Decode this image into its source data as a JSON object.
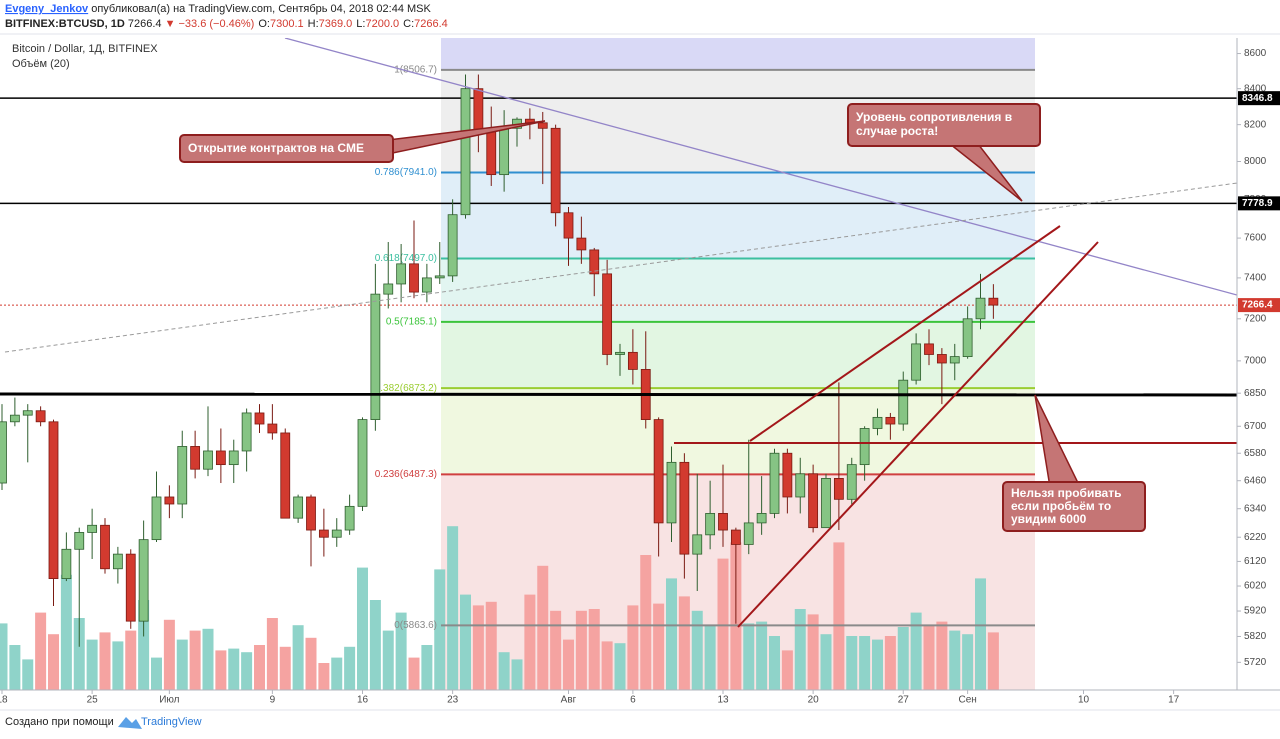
{
  "header": {
    "author": "Evgeny_Jenkov",
    "published": "опубликовал(а) на TradingView.com, Сентябрь 04, 2018 02:44 MSK",
    "symbol": "BITFINEX:BTCUSD, 1D",
    "last": "7266.4",
    "change": "▼ −33.6 (−0.46%)",
    "ohlc": [
      {
        "label": "O:",
        "value": "7300.1"
      },
      {
        "label": "H:",
        "value": "7369.0"
      },
      {
        "label": "L:",
        "value": "7200.0"
      },
      {
        "label": "C:",
        "value": "7266.4"
      }
    ]
  },
  "chart_data": {
    "type": "candlestick",
    "title": "Bitcoin / Dollar, 1Д, BITFINEX",
    "subtitle": "Объём (20)",
    "x": [
      "06-18",
      "06-19",
      "06-20",
      "06-21",
      "06-22",
      "06-23",
      "06-24",
      "06-25",
      "06-26",
      "06-27",
      "06-28",
      "06-29",
      "06-30",
      "07-01",
      "07-02",
      "07-03",
      "07-04",
      "07-05",
      "07-06",
      "07-07",
      "07-08",
      "07-09",
      "07-10",
      "07-11",
      "07-12",
      "07-13",
      "07-14",
      "07-15",
      "07-16",
      "07-17",
      "07-18",
      "07-19",
      "07-20",
      "07-21",
      "07-22",
      "07-23",
      "07-24",
      "07-25",
      "07-26",
      "07-27",
      "07-28",
      "07-29",
      "07-30",
      "07-31",
      "08-01",
      "08-02",
      "08-03",
      "08-04",
      "08-05",
      "08-06",
      "08-07",
      "08-08",
      "08-09",
      "08-10",
      "08-11",
      "08-12",
      "08-13",
      "08-14",
      "08-15",
      "08-16",
      "08-17",
      "08-18",
      "08-19",
      "08-20",
      "08-21",
      "08-22",
      "08-23",
      "08-24",
      "08-25",
      "08-26",
      "08-27",
      "08-28",
      "08-29",
      "08-30",
      "08-31",
      "09-01",
      "09-02",
      "09-03"
    ],
    "open": [
      6450,
      6720,
      6750,
      6770,
      6720,
      6050,
      6170,
      6240,
      6270,
      6090,
      6150,
      5880,
      6210,
      6390,
      6360,
      6610,
      6510,
      6590,
      6530,
      6590,
      6760,
      6710,
      6670,
      6300,
      6390,
      6250,
      6220,
      6250,
      6350,
      6730,
      7320,
      7370,
      7470,
      7330,
      7400,
      7410,
      7720,
      8400,
      8170,
      7930,
      8180,
      8230,
      8210,
      8180,
      7730,
      7600,
      7540,
      7420,
      7030,
      7040,
      6960,
      6730,
      6280,
      6540,
      6150,
      6230,
      6320,
      6250,
      6190,
      6280,
      6320,
      6580,
      6390,
      6490,
      6260,
      6470,
      6380,
      6530,
      6690,
      6740,
      6710,
      6910,
      7080,
      7030,
      6990,
      7020,
      7200,
      7300.1
    ],
    "high": [
      6800,
      6830,
      6800,
      6790,
      6730,
      6240,
      6260,
      6340,
      6300,
      6180,
      6170,
      6290,
      6500,
      6440,
      6680,
      6680,
      6790,
      6690,
      6640,
      6780,
      6800,
      6800,
      6690,
      6400,
      6400,
      6340,
      6300,
      6400,
      6740,
      7470,
      7580,
      7570,
      7690,
      7470,
      7580,
      7800,
      8480,
      8480,
      8300,
      8280,
      8240,
      8290,
      8270,
      8200,
      7760,
      7710,
      7550,
      7490,
      7080,
      7150,
      7140,
      6740,
      6610,
      6580,
      6490,
      6460,
      6530,
      6260,
      6640,
      6480,
      6600,
      6600,
      6560,
      6530,
      6490,
      6900,
      6560,
      6700,
      6780,
      6760,
      6950,
      7130,
      7150,
      7060,
      7080,
      7260,
      7420,
      7369
    ],
    "low": [
      6420,
      6700,
      6540,
      6700,
      5940,
      6040,
      5780,
      6130,
      6070,
      6030,
      5850,
      5820,
      6200,
      6300,
      6300,
      6470,
      6480,
      6450,
      6450,
      6500,
      6670,
      6640,
      6300,
      6280,
      6100,
      6140,
      6180,
      6230,
      6330,
      6680,
      7250,
      7280,
      7300,
      7280,
      7370,
      7380,
      7700,
      8050,
      7870,
      7840,
      8080,
      8120,
      7880,
      7660,
      7460,
      7470,
      7310,
      6980,
      6930,
      6890,
      6690,
      6140,
      6200,
      6050,
      6000,
      6170,
      6180,
      5870,
      6150,
      6230,
      6300,
      6320,
      6320,
      6240,
      6260,
      6250,
      6360,
      6460,
      6660,
      6640,
      6680,
      6890,
      6980,
      6800,
      6910,
      7010,
      7150,
      7200
    ],
    "close": [
      6720,
      6750,
      6770,
      6720,
      6050,
      6170,
      6240,
      6270,
      6090,
      6150,
      5880,
      6210,
      6390,
      6360,
      6610,
      6510,
      6590,
      6530,
      6590,
      6760,
      6710,
      6670,
      6300,
      6390,
      6250,
      6220,
      6250,
      6350,
      6730,
      7320,
      7370,
      7470,
      7330,
      7400,
      7410,
      7720,
      8400,
      8170,
      7930,
      8180,
      8230,
      8210,
      8180,
      7730,
      7600,
      7540,
      7420,
      7030,
      7040,
      6960,
      6730,
      6280,
      6540,
      6150,
      6230,
      6320,
      6250,
      6190,
      6280,
      6320,
      6580,
      6390,
      6490,
      6260,
      6470,
      6380,
      6530,
      6690,
      6740,
      6710,
      6910,
      7080,
      7030,
      6990,
      7020,
      7200,
      7300.1,
      7266.4
    ],
    "volume": [
      37,
      25,
      17,
      43,
      31,
      64,
      40,
      28,
      32,
      27,
      33,
      50,
      18,
      39,
      28,
      33,
      34,
      22,
      23,
      21,
      25,
      40,
      24,
      36,
      29,
      15,
      18,
      24,
      68,
      50,
      33,
      43,
      18,
      25,
      67,
      91,
      53,
      47,
      49,
      21,
      17,
      53,
      69,
      44,
      28,
      44,
      45,
      27,
      26,
      47,
      75,
      48,
      62,
      52,
      44,
      36,
      73,
      82,
      37,
      38,
      30,
      22,
      45,
      42,
      31,
      82,
      30,
      30,
      28,
      30,
      35,
      43,
      36,
      38,
      33,
      31,
      62,
      32
    ],
    "up_color": "#86c484",
    "down_color": "#d23a2f",
    "up_border": "#2f5f2f",
    "down_border": "#7a1a12",
    "volume_up_color": "#8fd3c9",
    "volume_down_color": "#f5a3a1",
    "log": true,
    "ylim": [
      5615,
      8690
    ],
    "yticks": [
      8600,
      8400,
      8200,
      8000,
      7800,
      7600,
      7400,
      7200,
      7000,
      6850,
      6700,
      6580,
      6460,
      6340,
      6220,
      6120,
      6020,
      5920,
      5820,
      5720
    ],
    "xlim": [
      "06-18",
      "09-22"
    ],
    "xticks": [
      {
        "value": "06-18",
        "label": "18"
      },
      {
        "value": "06-25",
        "label": "25"
      },
      {
        "value": "07-01",
        "label": "Июл"
      },
      {
        "value": "07-09",
        "label": "9"
      },
      {
        "value": "07-16",
        "label": "16"
      },
      {
        "value": "07-23",
        "label": "23"
      },
      {
        "value": "08-01",
        "label": "Авг"
      },
      {
        "value": "08-06",
        "label": "6"
      },
      {
        "value": "08-13",
        "label": "13"
      },
      {
        "value": "08-20",
        "label": "20"
      },
      {
        "value": "08-27",
        "label": "27"
      },
      {
        "value": "09-01",
        "label": "Сен"
      },
      {
        "value": "09-10",
        "label": "10"
      },
      {
        "value": "09-17",
        "label": "17"
      }
    ],
    "fib_levels": [
      {
        "label": "1(8506.7)",
        "value": 8506.7,
        "color": "#8a8a8a"
      },
      {
        "label": "0.786(7941.0)",
        "value": 7941.0,
        "color": "#2f8fd0"
      },
      {
        "label": "0.618(7497.0)",
        "value": 7497.0,
        "color": "#3cbfa0"
      },
      {
        "label": "0.5(7185.1)",
        "value": 7185.1,
        "color": "#3cc43c"
      },
      {
        "label": "0.382(6873.2)",
        "value": 6873.2,
        "color": "#9acd32"
      },
      {
        "label": "0.236(6487.3)",
        "value": 6487.3,
        "color": "#d04040"
      },
      {
        "label": "0(5863.6)",
        "value": 5863.6,
        "color": "#8a8a8a"
      }
    ],
    "levels": [
      {
        "value": 8346.8,
        "color": "#000000"
      },
      {
        "value": 7778.9,
        "color": "#000000"
      }
    ],
    "annotations": [
      {
        "lines": [
          "Открытие контрактов на CME"
        ]
      },
      {
        "lines": [
          "Уровень сопротивления в",
          "случае роста!"
        ]
      },
      {
        "lines": [
          "Нельзя пробивать",
          "если пробьём то",
          "увидим 6000"
        ]
      }
    ]
  },
  "footer": {
    "text": "Создано при помощи",
    "brand": "TradingView"
  }
}
